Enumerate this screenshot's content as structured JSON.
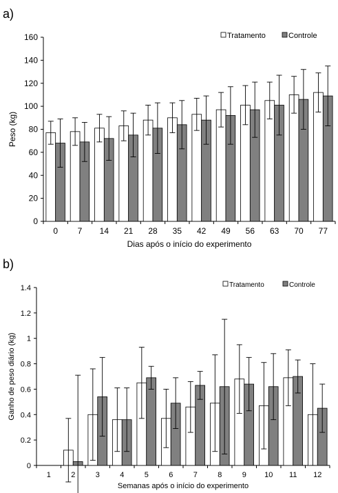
{
  "chart_data": [
    {
      "panel_label": "a)",
      "type": "bar",
      "categories": [
        "0",
        "7",
        "14",
        "21",
        "28",
        "35",
        "42",
        "49",
        "56",
        "63",
        "70",
        "77"
      ],
      "series": [
        {
          "name": "Tratamento",
          "color": "#ffffff",
          "values": [
            77,
            78,
            81,
            83,
            88,
            90,
            93,
            97,
            101,
            105,
            110,
            112
          ],
          "error": [
            10,
            12,
            12,
            13,
            13,
            13,
            14,
            15,
            17,
            16,
            16,
            17
          ]
        },
        {
          "name": "Controle",
          "color": "#808080",
          "values": [
            68,
            69,
            72,
            75,
            81,
            84,
            88,
            92,
            97,
            101,
            106,
            109
          ],
          "error": [
            21,
            17,
            19,
            19,
            22,
            21,
            21,
            25,
            24,
            26,
            26,
            26
          ]
        }
      ],
      "xlabel": "Dias após o início do experimento",
      "ylabel": "Peso (kg)",
      "ylim": [
        0,
        160
      ],
      "yticks": [
        "0",
        "20",
        "40",
        "60",
        "80",
        "100",
        "120",
        "140",
        "160"
      ],
      "grid": false,
      "legend_position": "top-right"
    },
    {
      "panel_label": "b)",
      "type": "bar",
      "categories": [
        "1",
        "2",
        "3",
        "4",
        "5",
        "6",
        "7",
        "8",
        "9",
        "10",
        "11",
        "12"
      ],
      "series": [
        {
          "name": "Tratamento",
          "color": "#ffffff",
          "values": [
            0,
            0.12,
            0.4,
            0.36,
            0.65,
            0.37,
            0.46,
            0.49,
            0.68,
            0.47,
            0.69,
            0.4
          ],
          "error": [
            0,
            0.25,
            0.36,
            0.25,
            0.28,
            0.23,
            0.2,
            0.38,
            0.27,
            0.34,
            0.22,
            0.4
          ]
        },
        {
          "name": "Controle",
          "color": "#808080",
          "values": [
            0,
            0.03,
            0.54,
            0.36,
            0.69,
            0.49,
            0.63,
            0.62,
            0.64,
            0.62,
            0.7,
            0.45
          ],
          "error": [
            0,
            0.68,
            0.31,
            0.25,
            0.09,
            0.2,
            0.11,
            0.53,
            0.21,
            0.26,
            0.13,
            0.19
          ]
        }
      ],
      "xlabel": "Semanas após o início do experimento",
      "ylabel": "Ganho de peso diário (kg)",
      "ylim": [
        0,
        1.4
      ],
      "yticks": [
        "0",
        "0.2",
        "0.4",
        "0.6",
        "0.8",
        "1",
        "1.2",
        "1.4"
      ],
      "grid": false,
      "legend_position": "top-right"
    }
  ]
}
